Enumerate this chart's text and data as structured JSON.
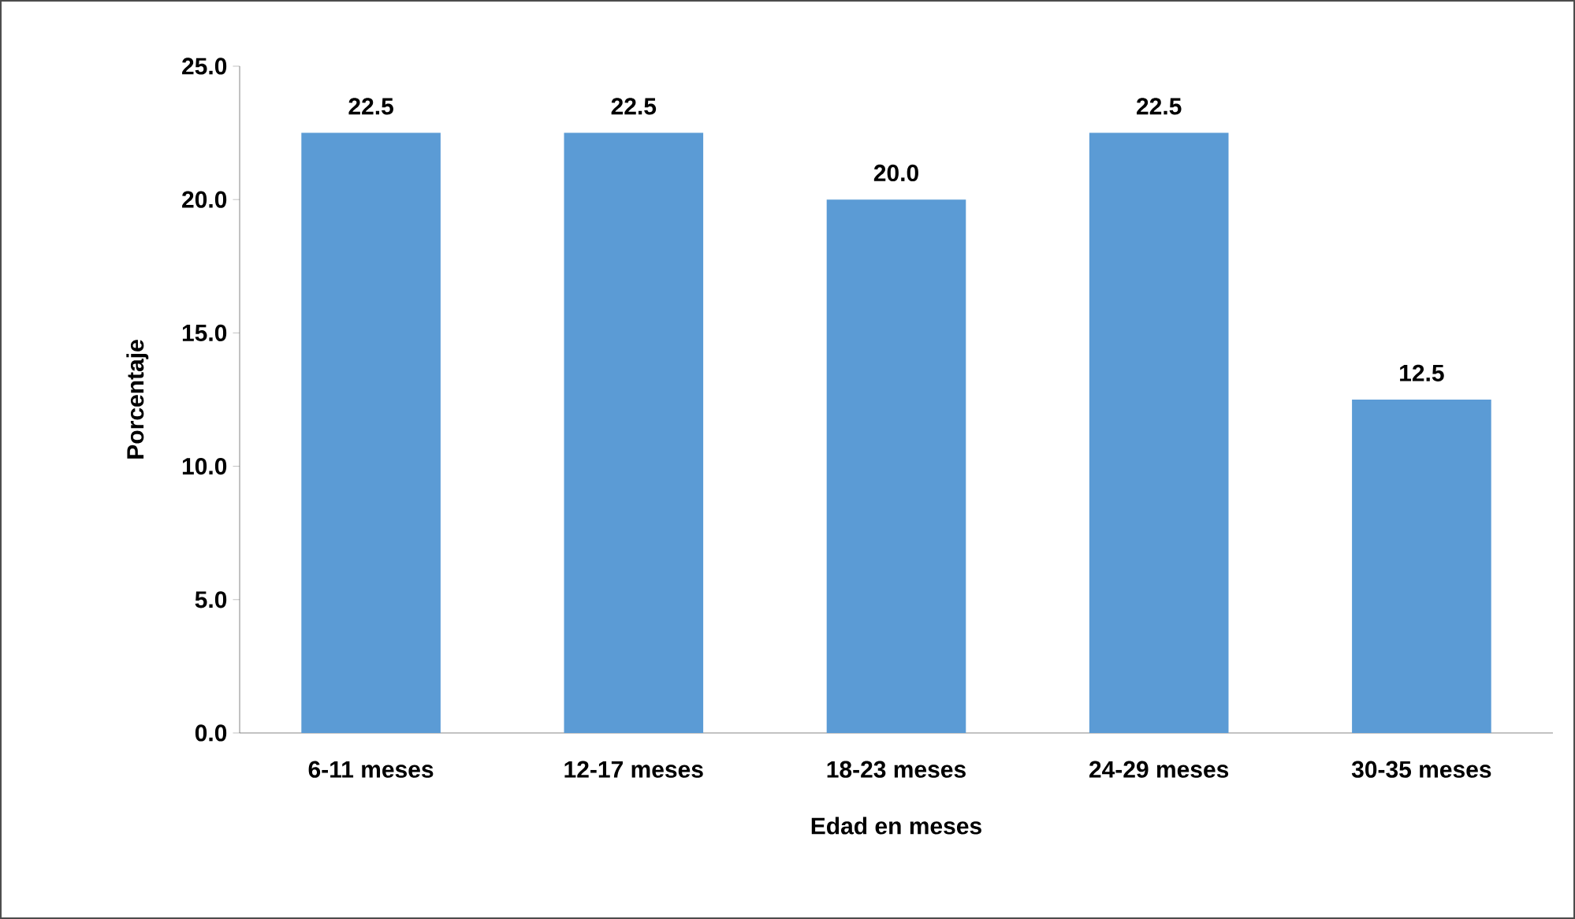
{
  "chart_data": {
    "type": "bar",
    "xlabel": "Edad en meses",
    "ylabel": "Porcentaje",
    "categories": [
      "6-11 meses",
      "12-17 meses",
      "18-23 meses",
      "24-29 meses",
      "30-35 meses"
    ],
    "values": [
      22.5,
      22.5,
      20.0,
      22.5,
      12.5
    ],
    "value_labels": [
      "22.5",
      "22.5",
      "20.0",
      "22.5",
      "12.5"
    ],
    "color": "#5b9bd5",
    "ylim": [
      0,
      25
    ],
    "yticks": [
      {
        "value": 0,
        "label": "0.0"
      },
      {
        "value": 5,
        "label": "5.0"
      },
      {
        "value": 10,
        "label": "10.0"
      },
      {
        "value": 15,
        "label": "15.0"
      },
      {
        "value": 20,
        "label": "20.0"
      },
      {
        "value": 25,
        "label": "25.0"
      }
    ]
  }
}
